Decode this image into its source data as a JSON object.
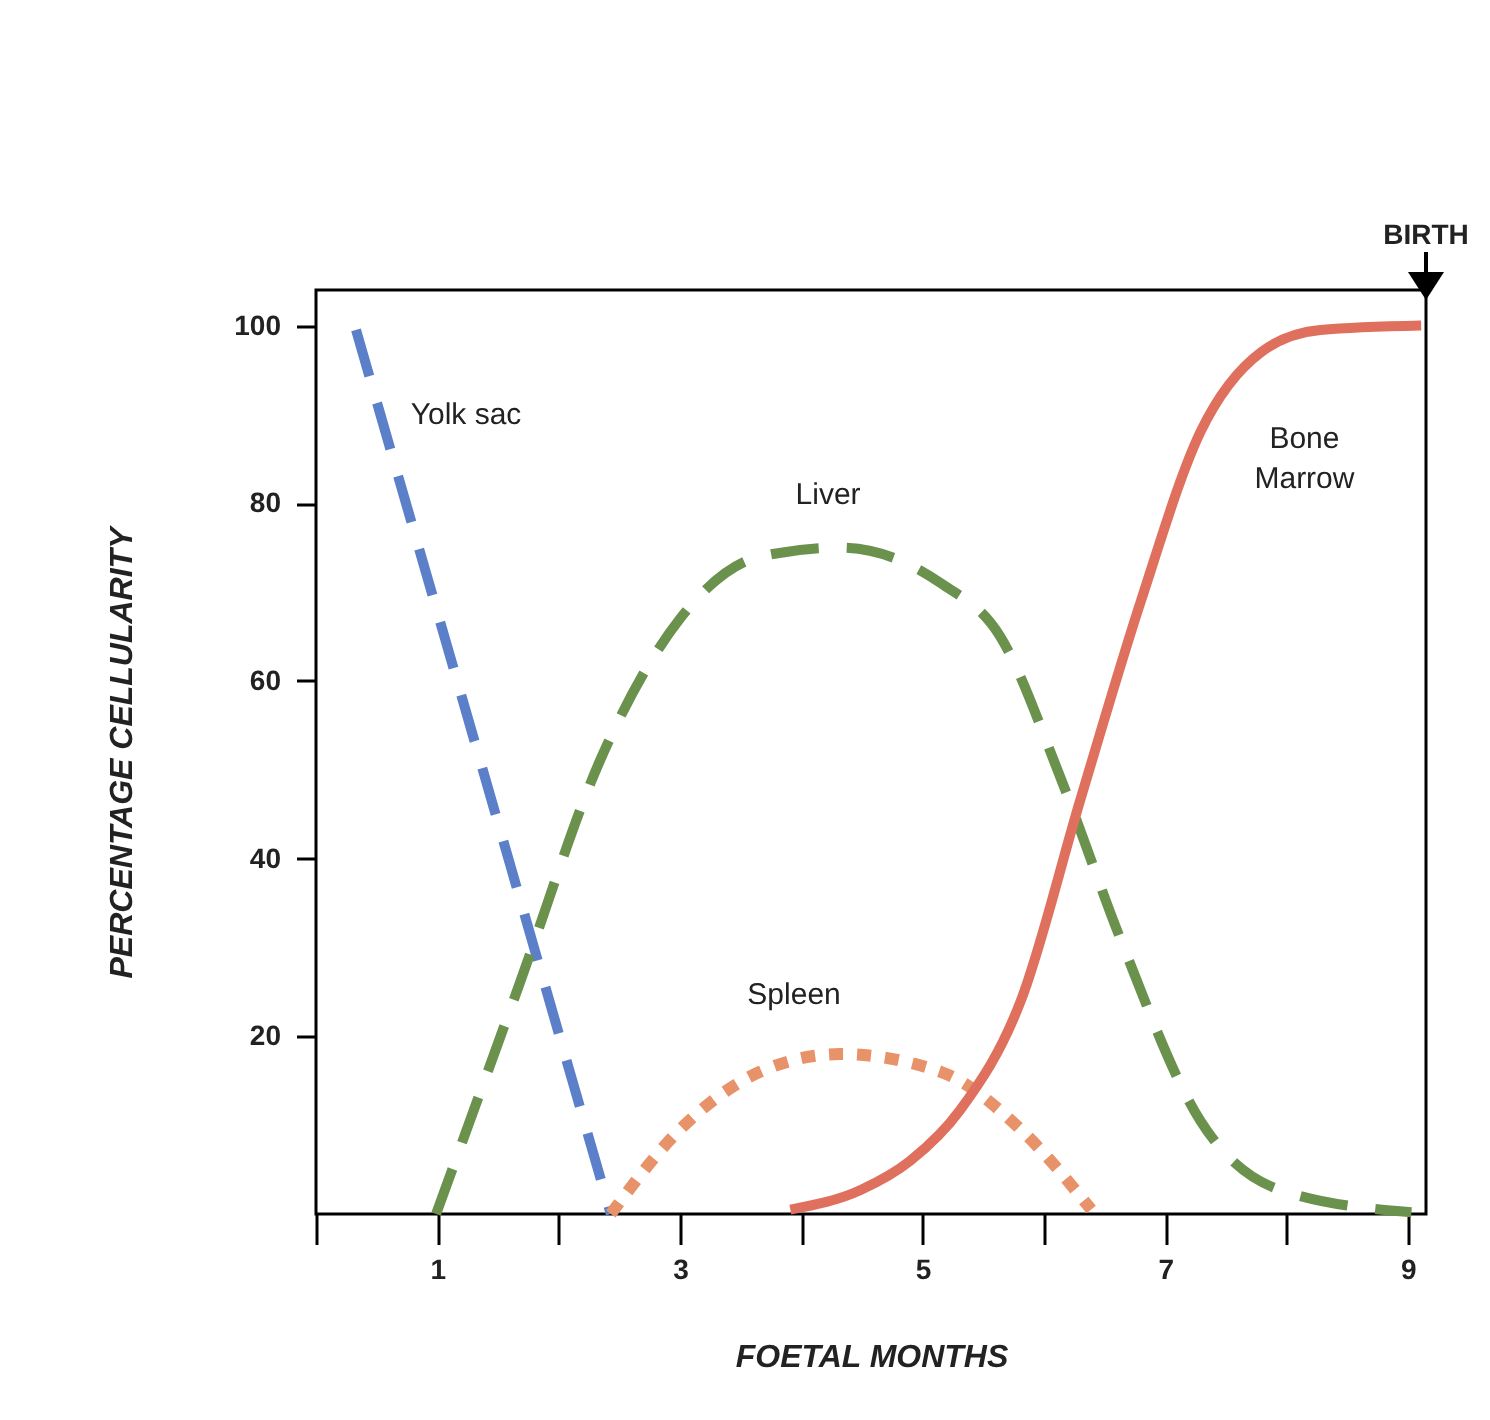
{
  "chart_data": {
    "type": "line",
    "xlabel": "FOETAL MONTHS",
    "ylabel": "PERCENTAGE CELLULARITY",
    "xlim": [
      0,
      9.15
    ],
    "ylim": [
      0,
      104
    ],
    "xticks": [
      {
        "value": 0,
        "label": null
      },
      1,
      {
        "value": 2,
        "label": null
      },
      3,
      {
        "value": 4,
        "label": null
      },
      5,
      {
        "value": 6,
        "label": null
      },
      7,
      {
        "value": 8,
        "label": null
      },
      9
    ],
    "yticks": [
      20,
      40,
      60,
      80,
      100
    ],
    "grid": false,
    "marker": "none",
    "annotations": [
      {
        "text": "BIRTH",
        "x": 9.15
      }
    ],
    "series": [
      {
        "name": "Yolk sac",
        "color": "#5b80c9",
        "line_style": "dashed",
        "x": [
          0.33,
          2.43
        ],
        "values": [
          99.5,
          0
        ]
      },
      {
        "name": "Liver",
        "color": "#6b924d",
        "line_style": "dashed",
        "x": [
          0.99,
          1.68,
          2.34,
          3.0,
          3.66,
          4.32,
          5.15,
          5.64,
          6.14,
          6.63,
          7.29,
          7.95,
          9.03
        ],
        "values": [
          0,
          26,
          51,
          67,
          74,
          75,
          71,
          65,
          49,
          31,
          10.5,
          2.7,
          0.2
        ]
      },
      {
        "name": "Spleen",
        "color": "#e8926a",
        "line_style": "dotted",
        "x": [
          2.43,
          3.0,
          3.66,
          4.32,
          5.15,
          5.81,
          6.39
        ],
        "values": [
          0,
          9.5,
          16,
          18,
          16,
          9.5,
          0.5
        ]
      },
      {
        "name": "Bone Marrow",
        "color": "#e0705e",
        "line_style": "solid",
        "x": [
          3.91,
          4.49,
          4.9,
          5.31,
          5.81,
          6.3,
          6.8,
          7.29,
          7.79,
          8.28,
          9.11
        ],
        "values": [
          0.5,
          2.7,
          6,
          11.7,
          24,
          46.6,
          69,
          88,
          97,
          99.5,
          100
        ]
      }
    ]
  }
}
